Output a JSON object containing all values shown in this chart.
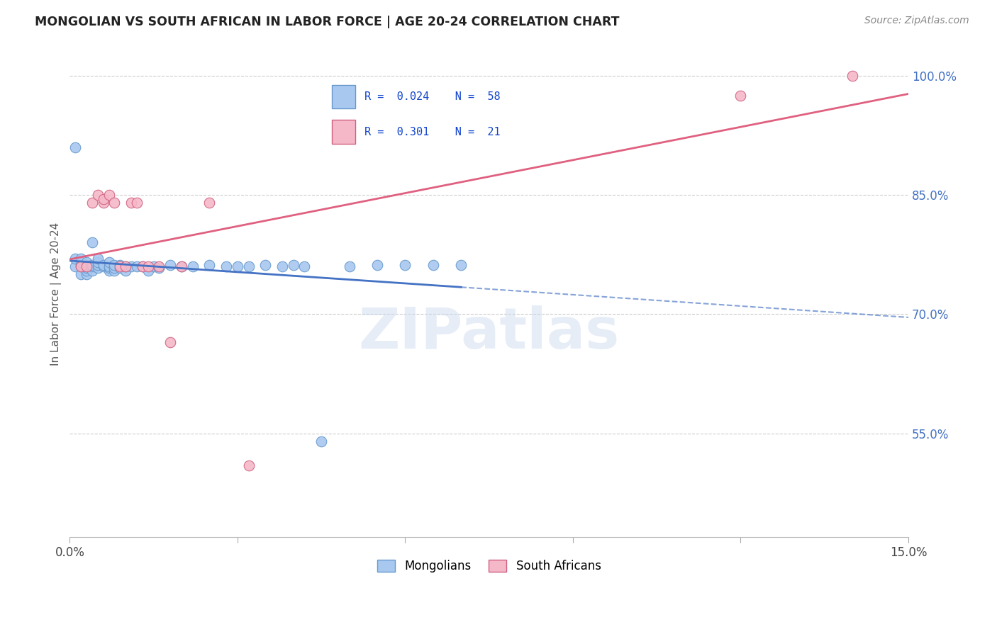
{
  "title": "MONGOLIAN VS SOUTH AFRICAN IN LABOR FORCE | AGE 20-24 CORRELATION CHART",
  "source": "Source: ZipAtlas.com",
  "ylabel": "In Labor Force | Age 20-24",
  "xmin": 0.0,
  "xmax": 0.15,
  "ymin": 0.42,
  "ymax": 1.03,
  "blue_scatter_color": "#a8c8f0",
  "blue_edge_color": "#6699cc",
  "pink_scatter_color": "#f5b8c8",
  "pink_edge_color": "#d06080",
  "blue_line_color": "#4472c4",
  "pink_line_color": "#e06080",
  "legend_R_blue": "0.024",
  "legend_N_blue": "58",
  "legend_R_pink": "0.301",
  "legend_N_pink": "21",
  "mongolian_x": [
    0.001,
    0.001,
    0.001,
    0.002,
    0.002,
    0.002,
    0.002,
    0.002,
    0.003,
    0.003,
    0.003,
    0.003,
    0.003,
    0.003,
    0.004,
    0.004,
    0.004,
    0.004,
    0.005,
    0.005,
    0.005,
    0.005,
    0.006,
    0.006,
    0.007,
    0.007,
    0.007,
    0.007,
    0.008,
    0.008,
    0.008,
    0.009,
    0.009,
    0.01,
    0.01,
    0.011,
    0.012,
    0.013,
    0.014,
    0.015,
    0.016,
    0.018,
    0.02,
    0.022,
    0.025,
    0.028,
    0.03,
    0.032,
    0.035,
    0.038,
    0.04,
    0.042,
    0.045,
    0.05,
    0.055,
    0.06,
    0.065,
    0.07
  ],
  "mongolian_y": [
    0.76,
    0.77,
    0.91,
    0.75,
    0.76,
    0.762,
    0.765,
    0.77,
    0.75,
    0.755,
    0.758,
    0.76,
    0.762,
    0.765,
    0.755,
    0.76,
    0.762,
    0.79,
    0.758,
    0.762,
    0.765,
    0.77,
    0.76,
    0.762,
    0.755,
    0.758,
    0.76,
    0.765,
    0.755,
    0.758,
    0.762,
    0.758,
    0.762,
    0.755,
    0.76,
    0.76,
    0.76,
    0.76,
    0.755,
    0.76,
    0.758,
    0.762,
    0.76,
    0.76,
    0.762,
    0.76,
    0.76,
    0.76,
    0.762,
    0.76,
    0.762,
    0.76,
    0.54,
    0.76,
    0.762,
    0.762,
    0.762,
    0.762
  ],
  "south_african_x": [
    0.002,
    0.003,
    0.004,
    0.005,
    0.006,
    0.006,
    0.007,
    0.008,
    0.009,
    0.01,
    0.011,
    0.012,
    0.013,
    0.014,
    0.016,
    0.018,
    0.02,
    0.025,
    0.032,
    0.12,
    0.14
  ],
  "south_african_y": [
    0.76,
    0.76,
    0.84,
    0.85,
    0.84,
    0.845,
    0.85,
    0.84,
    0.76,
    0.76,
    0.84,
    0.84,
    0.76,
    0.76,
    0.76,
    0.665,
    0.76,
    0.84,
    0.51,
    0.975,
    1.0
  ],
  "watermark_text": "ZIPatlas",
  "dpi": 100,
  "figsize": [
    14.06,
    8.92
  ]
}
